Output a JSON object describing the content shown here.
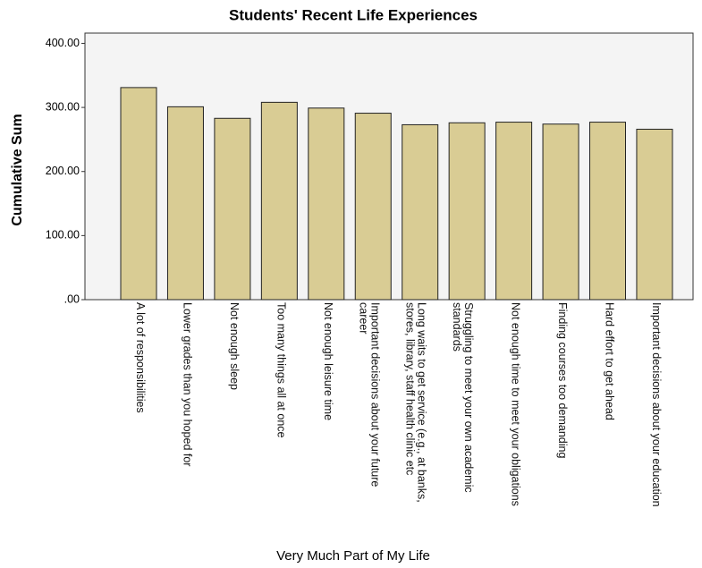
{
  "chart_data": {
    "type": "bar",
    "title": "Students' Recent Life Experiences",
    "y_label": "Cumulative Sum",
    "x_label": "Very Much Part of My Life",
    "categories": [
      "A lot of responsibilities",
      "Lower grades than you hoped for",
      "Not enough sleep",
      "Too many things all at once",
      "Not enough leisure time",
      "Important decisions about your future career",
      "Long waits to get service (e.g., at banks, stores, library, staff health clinic etc",
      "Struggling to meet your own academic standards",
      "Not enough time to meet your obligations",
      "Finding courses too demanding",
      "Hard effort to get ahead",
      "Important decisions about your education"
    ],
    "values": [
      331,
      301,
      283,
      308,
      299,
      291,
      273,
      276,
      277,
      274,
      277,
      266
    ],
    "color": "#d9cc94",
    "ylim": [
      0,
      416
    ],
    "yticks": [
      {
        "value": 0,
        "label": ".00"
      },
      {
        "value": 100,
        "label": "100.00"
      },
      {
        "value": 200,
        "label": "200.00"
      },
      {
        "value": 300,
        "label": "300.00"
      },
      {
        "value": 400,
        "label": "400.00"
      }
    ],
    "grid": false
  }
}
